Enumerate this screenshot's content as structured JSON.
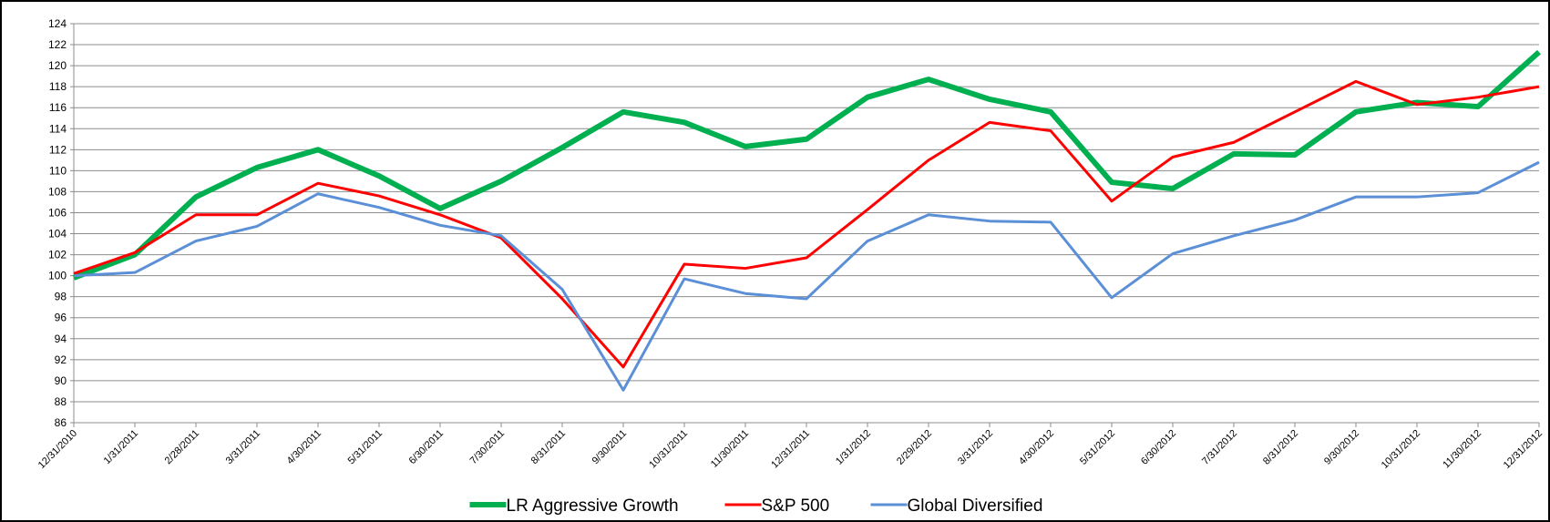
{
  "chart_data": {
    "type": "line",
    "categories": [
      "12/31/2010",
      "1/31/2011",
      "2/28/2011",
      "3/31/2011",
      "4/30/2011",
      "5/31/2011",
      "6/30/2011",
      "7/30/2011",
      "8/31/2011",
      "9/30/2011",
      "10/31/2011",
      "11/30/2011",
      "12/31/2011",
      "1/31/2012",
      "2/29/2012",
      "3/31/2012",
      "4/30/2012",
      "5/31/2012",
      "6/30/2012",
      "7/31/2012",
      "8/31/2012",
      "9/30/2012",
      "10/31/2012",
      "11/30/2012",
      "12/31/2012"
    ],
    "series": [
      {
        "name": "LR Aggressive Growth",
        "color": "#00b050",
        "values": [
          99.8,
          102,
          107.5,
          110.3,
          112,
          109.5,
          106.4,
          109,
          112.2,
          115.6,
          114.6,
          112.3,
          113,
          117,
          118.7,
          116.8,
          115.6,
          108.9,
          108.3,
          111.6,
          111.5,
          115.6,
          116.5,
          116.1,
          121.3
        ]
      },
      {
        "name": "S&P 500",
        "color": "#ff0000",
        "values": [
          100.2,
          102.2,
          105.8,
          105.8,
          108.8,
          107.6,
          105.8,
          103.6,
          97.8,
          91.3,
          101.1,
          100.7,
          101.7,
          106.3,
          111,
          114.6,
          113.8,
          107.1,
          111.3,
          112.7,
          115.6,
          118.5,
          116.3,
          117,
          118
        ]
      },
      {
        "name": "Global Diversified",
        "color": "#5b8fd6",
        "values": [
          100,
          100.3,
          103.3,
          104.7,
          107.8,
          106.5,
          104.8,
          103.8,
          98.7,
          89.1,
          99.7,
          98.3,
          97.8,
          103.3,
          105.8,
          105.2,
          105.1,
          97.9,
          102.1,
          103.8,
          105.3,
          107.5,
          107.5,
          107.9,
          110.8
        ]
      }
    ],
    "ylim": [
      86,
      124
    ],
    "yticks": [
      86,
      88,
      90,
      92,
      94,
      96,
      98,
      100,
      102,
      104,
      106,
      108,
      110,
      112,
      114,
      116,
      118,
      120,
      122,
      124
    ],
    "grid": true,
    "legend": "bottom"
  }
}
